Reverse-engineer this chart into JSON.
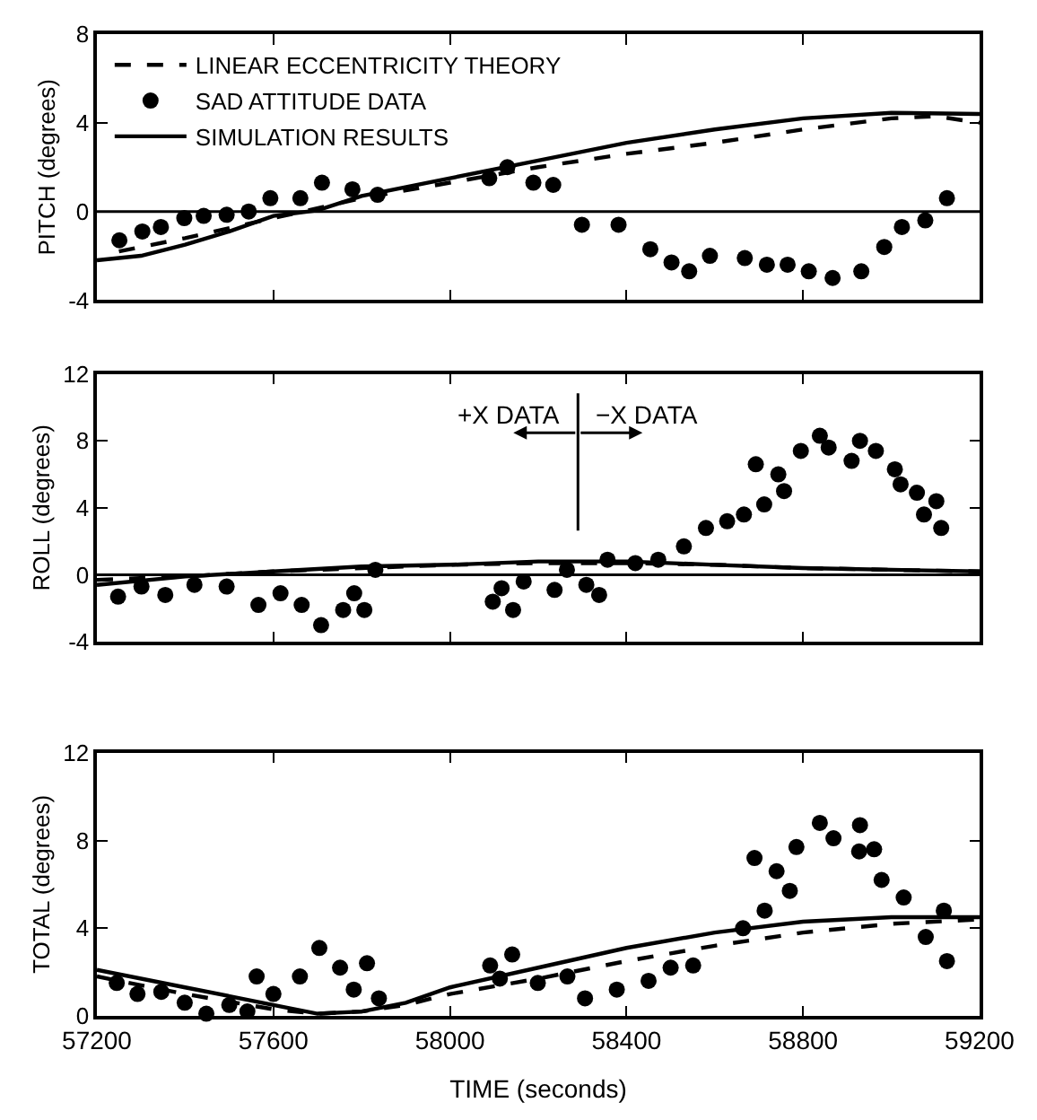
{
  "chart_data": [
    {
      "type": "scatter",
      "ylabel": "PITCH (degrees)",
      "xlim": [
        57200,
        59200
      ],
      "xticks": [
        {
          "value": 57200,
          "label": null
        },
        {
          "value": 57600,
          "label": null
        },
        {
          "value": 58000,
          "label": null
        },
        {
          "value": 58400,
          "label": null
        },
        {
          "value": 58800,
          "label": null
        },
        {
          "value": 59200,
          "label": null
        }
      ],
      "ylim": [
        -4,
        8
      ],
      "yticks": [
        -4,
        0,
        4,
        8
      ],
      "tick_labels": "y",
      "grid": false,
      "legend": "top left",
      "ref_lines": [
        {
          "axis": "y",
          "value": 0,
          "color": "#000000"
        }
      ],
      "series": [
        {
          "name": "LINEAR ECCENTRICITY THEORY",
          "type": "line",
          "line_style": "dashed",
          "color": "#000000",
          "x": [
            57250,
            57400,
            57600,
            57800,
            58000,
            58200,
            58400,
            58600,
            58800,
            59000,
            59100,
            59200
          ],
          "values": [
            -1.8,
            -1.2,
            -0.3,
            0.6,
            1.3,
            2.0,
            2.6,
            3.1,
            3.7,
            4.2,
            4.3,
            4.0
          ]
        },
        {
          "name": "SAD ATTITUDE DATA",
          "marker": "circle",
          "color": "#000000",
          "x": [
            57251,
            57303,
            57345,
            57398,
            57442,
            57494,
            57544,
            57593,
            57661,
            57710,
            57779,
            57836,
            58089,
            58130,
            58189,
            58234,
            58299,
            58382,
            58454,
            58502,
            58542,
            58589,
            58668,
            58718,
            58765,
            58813,
            58867,
            58932,
            58984,
            59024,
            59077,
            59126
          ],
          "values": [
            -1.3,
            -0.9,
            -0.7,
            -0.3,
            -0.2,
            -0.15,
            0,
            0.6,
            0.6,
            1.3,
            1.0,
            0.75,
            1.5,
            2.0,
            1.3,
            1.2,
            -0.6,
            -0.6,
            -1.7,
            -2.3,
            -2.7,
            -2.0,
            -2.1,
            -2.4,
            -2.4,
            -2.7,
            -3.0,
            -2.7,
            -1.6,
            -0.7,
            -0.4,
            0.6
          ]
        },
        {
          "name": "SIMULATION RESULTS",
          "type": "line",
          "line_style": "solid",
          "color": "#000000",
          "x": [
            57200,
            57300,
            57400,
            57500,
            57600,
            57700,
            57800,
            58000,
            58200,
            58400,
            58600,
            58800,
            59000,
            59200
          ],
          "values": [
            -2.2,
            -2.0,
            -1.5,
            -0.9,
            -0.2,
            0.05,
            0.7,
            1.5,
            2.3,
            3.1,
            3.7,
            4.2,
            4.45,
            4.4
          ]
        }
      ]
    },
    {
      "type": "scatter",
      "ylabel": "ROLL (degrees)",
      "xlim": [
        57200,
        59200
      ],
      "xticks": [
        {
          "value": 57200,
          "label": null
        },
        {
          "value": 57600,
          "label": null
        },
        {
          "value": 58000,
          "label": null
        },
        {
          "value": 58400,
          "label": null
        },
        {
          "value": 58800,
          "label": null
        },
        {
          "value": 59200,
          "label": null
        }
      ],
      "ylim": [
        -4,
        12
      ],
      "yticks": [
        -4,
        0,
        4,
        8,
        12
      ],
      "tick_labels": "y",
      "grid": false,
      "ref_lines": [
        {
          "axis": "y",
          "value": 0,
          "color": "#000000"
        }
      ],
      "annotations": [
        "+X DATA",
        "−X DATA"
      ],
      "series": [
        {
          "type": "line",
          "line_style": "dashed",
          "color": "#000000",
          "x": [
            57200,
            57400,
            57600,
            57800,
            58000,
            58200,
            58400,
            58600,
            58800,
            59000,
            59200
          ],
          "values": [
            -0.3,
            -0.1,
            0.2,
            0.4,
            0.6,
            0.7,
            0.7,
            0.6,
            0.4,
            0.3,
            0.2
          ]
        },
        {
          "marker": "circle",
          "color": "#000000",
          "x": [
            57248,
            57301,
            57355,
            57421,
            57494,
            57566,
            57616,
            57664,
            57708,
            57758,
            57783,
            57806,
            57831,
            58097,
            58117,
            58143,
            58167,
            58237,
            58265,
            58309,
            58338,
            58357,
            58420,
            58472,
            58530,
            58580,
            58628,
            58666,
            58693,
            58712,
            58744,
            58757,
            58795,
            58838,
            58858,
            58910,
            58929,
            58965,
            59008,
            59021,
            59058,
            59074,
            59102,
            59113
          ],
          "values": [
            -1.3,
            -0.7,
            -1.2,
            -0.6,
            -0.7,
            -1.8,
            -1.1,
            -1.8,
            -3.0,
            -2.1,
            -1.1,
            -2.1,
            0.3,
            -1.6,
            -0.8,
            -2.1,
            -0.4,
            -0.9,
            0.3,
            -0.6,
            -1.2,
            0.9,
            0.7,
            0.9,
            1.7,
            2.8,
            3.2,
            3.6,
            6.6,
            4.2,
            6.0,
            5.0,
            7.4,
            8.3,
            7.6,
            6.8,
            8.0,
            7.4,
            6.3,
            5.4,
            4.9,
            3.6,
            4.4,
            2.8
          ]
        },
        {
          "type": "line",
          "line_style": "solid",
          "color": "#000000",
          "x": [
            57200,
            57400,
            57600,
            57800,
            58000,
            58200,
            58400,
            58600,
            58800,
            59000,
            59200
          ],
          "values": [
            -0.6,
            -0.1,
            0.2,
            0.5,
            0.6,
            0.8,
            0.8,
            0.6,
            0.4,
            0.3,
            0.2
          ]
        }
      ]
    },
    {
      "type": "scatter",
      "ylabel": "TOTAL (degrees)",
      "xlabel": "TIME (seconds)",
      "xlim": [
        57200,
        59200
      ],
      "xticks": [
        57200,
        57600,
        58000,
        58400,
        58800,
        59200
      ],
      "ylim": [
        0,
        12
      ],
      "yticks": [
        0,
        4,
        8,
        12
      ],
      "grid": false,
      "series": [
        {
          "type": "line",
          "line_style": "dashed",
          "color": "#000000",
          "x": [
            57200,
            57400,
            57600,
            57700,
            57800,
            57900,
            58000,
            58200,
            58400,
            58600,
            58800,
            59000,
            59200
          ],
          "values": [
            1.8,
            1.0,
            0.3,
            0.1,
            0.2,
            0.5,
            1.0,
            1.7,
            2.5,
            3.2,
            3.8,
            4.2,
            4.4
          ]
        },
        {
          "marker": "circle",
          "color": "#000000",
          "x": [
            57245,
            57292,
            57346,
            57399,
            57448,
            57500,
            57541,
            57562,
            57600,
            57660,
            57704,
            57751,
            57782,
            57812,
            57839,
            58091,
            58113,
            58141,
            58199,
            58266,
            58306,
            58378,
            58450,
            58500,
            58551,
            58664,
            58690,
            58713,
            58740,
            58770,
            58785,
            58838,
            58869,
            58929,
            58927,
            58961,
            58978,
            59028,
            59078,
            59119,
            59126
          ],
          "values": [
            1.5,
            1.0,
            1.1,
            0.6,
            0.1,
            0.5,
            0.2,
            1.8,
            1.0,
            1.8,
            3.1,
            2.2,
            1.2,
            2.4,
            0.8,
            2.3,
            1.7,
            2.8,
            1.5,
            1.8,
            0.8,
            1.2,
            1.6,
            2.2,
            2.3,
            4.0,
            7.2,
            4.8,
            6.6,
            5.7,
            7.7,
            8.8,
            8.1,
            8.7,
            7.5,
            7.6,
            6.2,
            5.4,
            3.6,
            4.8,
            2.5
          ]
        },
        {
          "type": "line",
          "line_style": "solid",
          "color": "#000000",
          "x": [
            57200,
            57400,
            57600,
            57700,
            57800,
            57900,
            58000,
            58200,
            58400,
            58600,
            58800,
            59000,
            59200
          ],
          "values": [
            2.1,
            1.3,
            0.5,
            0.1,
            0.2,
            0.6,
            1.3,
            2.2,
            3.1,
            3.8,
            4.3,
            4.5,
            4.5
          ]
        }
      ]
    }
  ]
}
